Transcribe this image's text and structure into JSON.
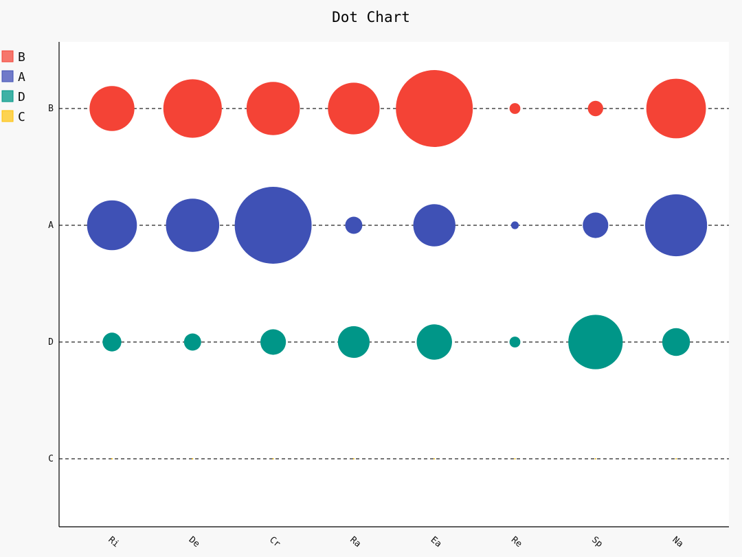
{
  "chart_data": {
    "type": "scatter",
    "title": "Dot Chart",
    "categories": [
      "Ri",
      "De",
      "Cr",
      "Ra",
      "Ea",
      "Re",
      "Sp",
      "Na"
    ],
    "rows": [
      "B",
      "A",
      "D",
      "C"
    ],
    "legend_position": "top-left",
    "grid": "dashed horizontal lines per row",
    "series": [
      {
        "name": "B",
        "color": "#f44336",
        "legend_color": "#f6766c",
        "values": [
          34,
          58,
          48,
          45,
          100,
          2,
          4,
          60
        ]
      },
      {
        "name": "A",
        "color": "#3f51b5",
        "legend_color": "#707ac9",
        "values": [
          42,
          48,
          100,
          5,
          30,
          1,
          11,
          65
        ]
      },
      {
        "name": "D",
        "color": "#009688",
        "legend_color": "#3fb1a5",
        "values": [
          6,
          5,
          11,
          17,
          21,
          2,
          50,
          13
        ]
      },
      {
        "name": "C",
        "color": "#ffc107",
        "legend_color": "#fdd352",
        "values": [
          0,
          0,
          0,
          0,
          0,
          0,
          0,
          0
        ]
      }
    ]
  }
}
